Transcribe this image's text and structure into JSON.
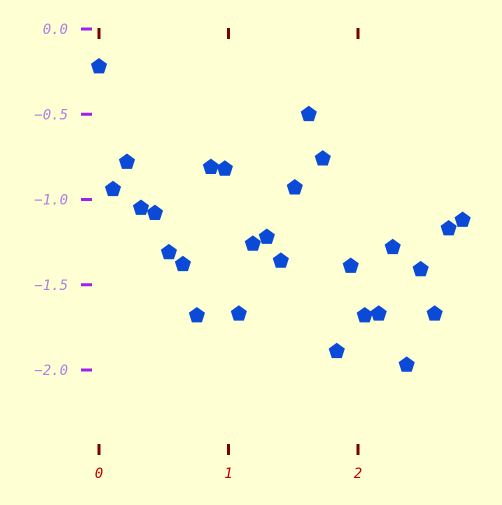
{
  "colors": {
    "background": "#ffffd4",
    "y_tick": "#a020f0",
    "y_label": "#b080e0",
    "x_tick": "#7a0000",
    "x_label": "#c00000",
    "marker": "#0a4ad6"
  },
  "chart_data": {
    "type": "scatter",
    "title": "",
    "xlabel": "",
    "ylabel": "",
    "xlim": [
      0,
      2.8
    ],
    "ylim": [
      -2.4,
      0.0
    ],
    "grid": false,
    "legend": "none",
    "marker": "pentagon",
    "x_ticks": [
      {
        "value": 0,
        "label": "0"
      },
      {
        "value": 1,
        "label": "1"
      },
      {
        "value": 2,
        "label": "2"
      }
    ],
    "y_ticks": [
      {
        "value": 0.0,
        "label": "0.0"
      },
      {
        "value": -0.5,
        "label": "−0.5"
      },
      {
        "value": -1.0,
        "label": "−1.0"
      },
      {
        "value": -1.5,
        "label": "−1.5"
      },
      {
        "value": -2.0,
        "label": "−2.0"
      }
    ],
    "series": [
      {
        "x": [
          0.0,
          0.108,
          0.216,
          0.324,
          0.432,
          0.54,
          0.648,
          0.756,
          0.864,
          0.972,
          1.08,
          1.188,
          1.296,
          1.404,
          1.512,
          1.62,
          1.728,
          1.836,
          1.944,
          2.052,
          2.16,
          2.268,
          2.376,
          2.484,
          2.592,
          2.7,
          2.808
        ],
        "y": [
          -0.22,
          -0.94,
          -0.78,
          -1.05,
          -1.08,
          -1.31,
          -1.38,
          -1.68,
          -0.81,
          -0.82,
          -1.67,
          -1.26,
          -1.22,
          -1.36,
          -0.93,
          -0.5,
          -0.76,
          -1.89,
          -1.39,
          -1.68,
          -1.67,
          -1.28,
          -1.97,
          -1.41,
          -1.67,
          -1.17,
          -1.12
        ]
      }
    ]
  }
}
